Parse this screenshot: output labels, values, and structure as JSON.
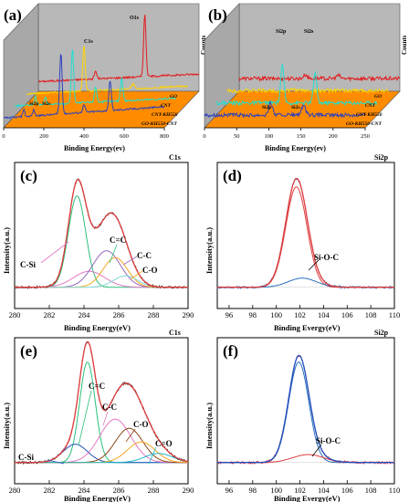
{
  "figure": {
    "panels": {
      "a": {
        "letter": "(a)",
        "type": "waterfall",
        "xlabel": "Binding Energy(ev)",
        "zlabel": "Counts",
        "ticks": [
          "0",
          "200",
          "400",
          "600",
          "800"
        ],
        "xrange": [
          0,
          800
        ],
        "peak_labels": [
          "C1s",
          "O1s",
          "Si2p",
          "Si2s"
        ],
        "series": [
          {
            "name": "GO",
            "color": "#e41a1c"
          },
          {
            "name": "CNT",
            "color": "#ffd400"
          },
          {
            "name": "CNT-KH550",
            "color": "#1fe0d0"
          },
          {
            "name": "GO-KH550-CNT",
            "color": "#2b3fbf"
          }
        ]
      },
      "b": {
        "letter": "(b)",
        "type": "waterfall",
        "xlabel": "Binding Energy(ev)",
        "zlabel": "Counts",
        "ticks": [
          "0",
          "50",
          "100",
          "150",
          "200",
          "250"
        ],
        "xrange": [
          0,
          250
        ],
        "peak_labels": [
          "Si2p",
          "Si2s",
          "Si2p",
          "Si2s"
        ],
        "series": [
          {
            "name": "GO",
            "color": "#e41a1c"
          },
          {
            "name": "CNT",
            "color": "#ffd400"
          },
          {
            "name": "CNT-KH550",
            "color": "#1fe0d0"
          },
          {
            "name": "GO-KH550-CNT",
            "color": "#2b3fbf"
          }
        ]
      },
      "c": {
        "letter": "(c)",
        "title": "C1s",
        "xlabel": "Binding Energy(eV)",
        "ylabel": "Intensity(a.u.)",
        "ticks": [
          "280",
          "282",
          "284",
          "286",
          "288",
          "290"
        ],
        "xrange": [
          280,
          290
        ],
        "annotations": [
          "C-Si",
          "C=C",
          "C-C",
          "C-O"
        ],
        "components": [
          {
            "center": 283.6,
            "height": 0.8,
            "width": 0.5,
            "color": "#2bbf7a"
          },
          {
            "center": 284.3,
            "height": 0.14,
            "width": 0.9,
            "color": "#e377c2"
          },
          {
            "center": 285.3,
            "height": 0.32,
            "width": 0.8,
            "color": "#9467bd"
          },
          {
            "center": 285.8,
            "height": 0.26,
            "width": 0.7,
            "color": "#f5a623"
          },
          {
            "center": 286.4,
            "height": 0.1,
            "width": 0.7,
            "color": "#7fd8d8"
          }
        ]
      },
      "d": {
        "letter": "(d)",
        "title": "Si2p",
        "xlabel": "Binding Evergy(eV)",
        "ylabel": "Intensity(a.u.)",
        "ticks": [
          "96",
          "98",
          "100",
          "102",
          "104",
          "106",
          "108",
          "110"
        ],
        "xrange": [
          95,
          110
        ],
        "annotations": [
          "Si-O-C"
        ],
        "components": [
          {
            "center": 101.7,
            "height": 0.88,
            "width": 0.9,
            "color": "#e03c3c"
          },
          {
            "center": 102.2,
            "height": 0.08,
            "width": 1.2,
            "color": "#2b6fbf"
          }
        ]
      },
      "e": {
        "letter": "(e)",
        "title": "C1s",
        "xlabel": "Binding Energy(eV)",
        "ylabel": "Intensity(a.u.)",
        "ticks": [
          "280",
          "282",
          "284",
          "286",
          "288",
          "290"
        ],
        "xrange": [
          280,
          290
        ],
        "annotations": [
          "C=C",
          "C-C",
          "C-O",
          "C-Si",
          "C=O"
        ],
        "components": [
          {
            "center": 284.2,
            "height": 0.88,
            "width": 0.45,
            "color": "#2bbf7a"
          },
          {
            "center": 283.5,
            "height": 0.16,
            "width": 0.7,
            "color": "#1f4fbf"
          },
          {
            "center": 285.8,
            "height": 0.38,
            "width": 0.9,
            "color": "#e377c2"
          },
          {
            "center": 286.6,
            "height": 0.3,
            "width": 0.8,
            "color": "#8b4513"
          },
          {
            "center": 287.3,
            "height": 0.18,
            "width": 0.8,
            "color": "#f5a623"
          },
          {
            "center": 288.3,
            "height": 0.08,
            "width": 0.8,
            "color": "#1fb5c9"
          }
        ]
      },
      "f": {
        "letter": "(f)",
        "title": "Si2p",
        "xlabel": "Binding Evergy(eV)",
        "ylabel": "Intensity(a.u.)",
        "ticks": [
          "96",
          "98",
          "100",
          "102",
          "104",
          "106",
          "108",
          "110"
        ],
        "xrange": [
          95,
          110
        ],
        "annotations": [
          "Si-O-C"
        ],
        "components": [
          {
            "center": 101.9,
            "height": 0.88,
            "width": 0.85,
            "color": "#2b6fbf"
          },
          {
            "center": 102.7,
            "height": 0.07,
            "width": 1.3,
            "color": "#e03c3c"
          }
        ]
      }
    }
  },
  "chart_data": [
    {
      "type": "line",
      "panel": "a",
      "xlabel": "Binding Energy(ev)",
      "zlabel": "Counts",
      "xlim": [
        0,
        800
      ],
      "series": [
        {
          "name": "GO"
        },
        {
          "name": "CNT"
        },
        {
          "name": "CNT-KH550"
        },
        {
          "name": "GO-KH550-CNT"
        }
      ],
      "annotations": [
        "C1s",
        "O1s",
        "Si2p",
        "Si2s"
      ]
    },
    {
      "type": "line",
      "panel": "b",
      "xlabel": "Binding Energy(ev)",
      "zlabel": "Counts",
      "xlim": [
        0,
        250
      ],
      "series": [
        {
          "name": "GO"
        },
        {
          "name": "CNT"
        },
        {
          "name": "CNT-KH550"
        },
        {
          "name": "GO-KH550-CNT"
        }
      ],
      "annotations": [
        "Si2p",
        "Si2s"
      ]
    },
    {
      "type": "line",
      "panel": "c",
      "title": "C1s",
      "xlabel": "Binding Energy(eV)",
      "ylabel": "Intensity(a.u.)",
      "xlim": [
        280,
        290
      ],
      "annotations": [
        "C-Si",
        "C=C",
        "C-C",
        "C-O"
      ]
    },
    {
      "type": "line",
      "panel": "d",
      "title": "Si2p",
      "xlabel": "Binding Evergy(eV)",
      "ylabel": "Intensity(a.u.)",
      "xlim": [
        95,
        110
      ],
      "annotations": [
        "Si-O-C"
      ]
    },
    {
      "type": "line",
      "panel": "e",
      "title": "C1s",
      "xlabel": "Binding Energy(eV)",
      "ylabel": "Intensity(a.u.)",
      "xlim": [
        280,
        290
      ],
      "annotations": [
        "C=C",
        "C-C",
        "C-O",
        "C-Si",
        "C=O"
      ]
    },
    {
      "type": "line",
      "panel": "f",
      "title": "Si2p",
      "xlabel": "Binding Evergy(eV)",
      "ylabel": "Intensity(a.u.)",
      "xlim": [
        95,
        110
      ],
      "annotations": [
        "Si-O-C"
      ]
    }
  ]
}
